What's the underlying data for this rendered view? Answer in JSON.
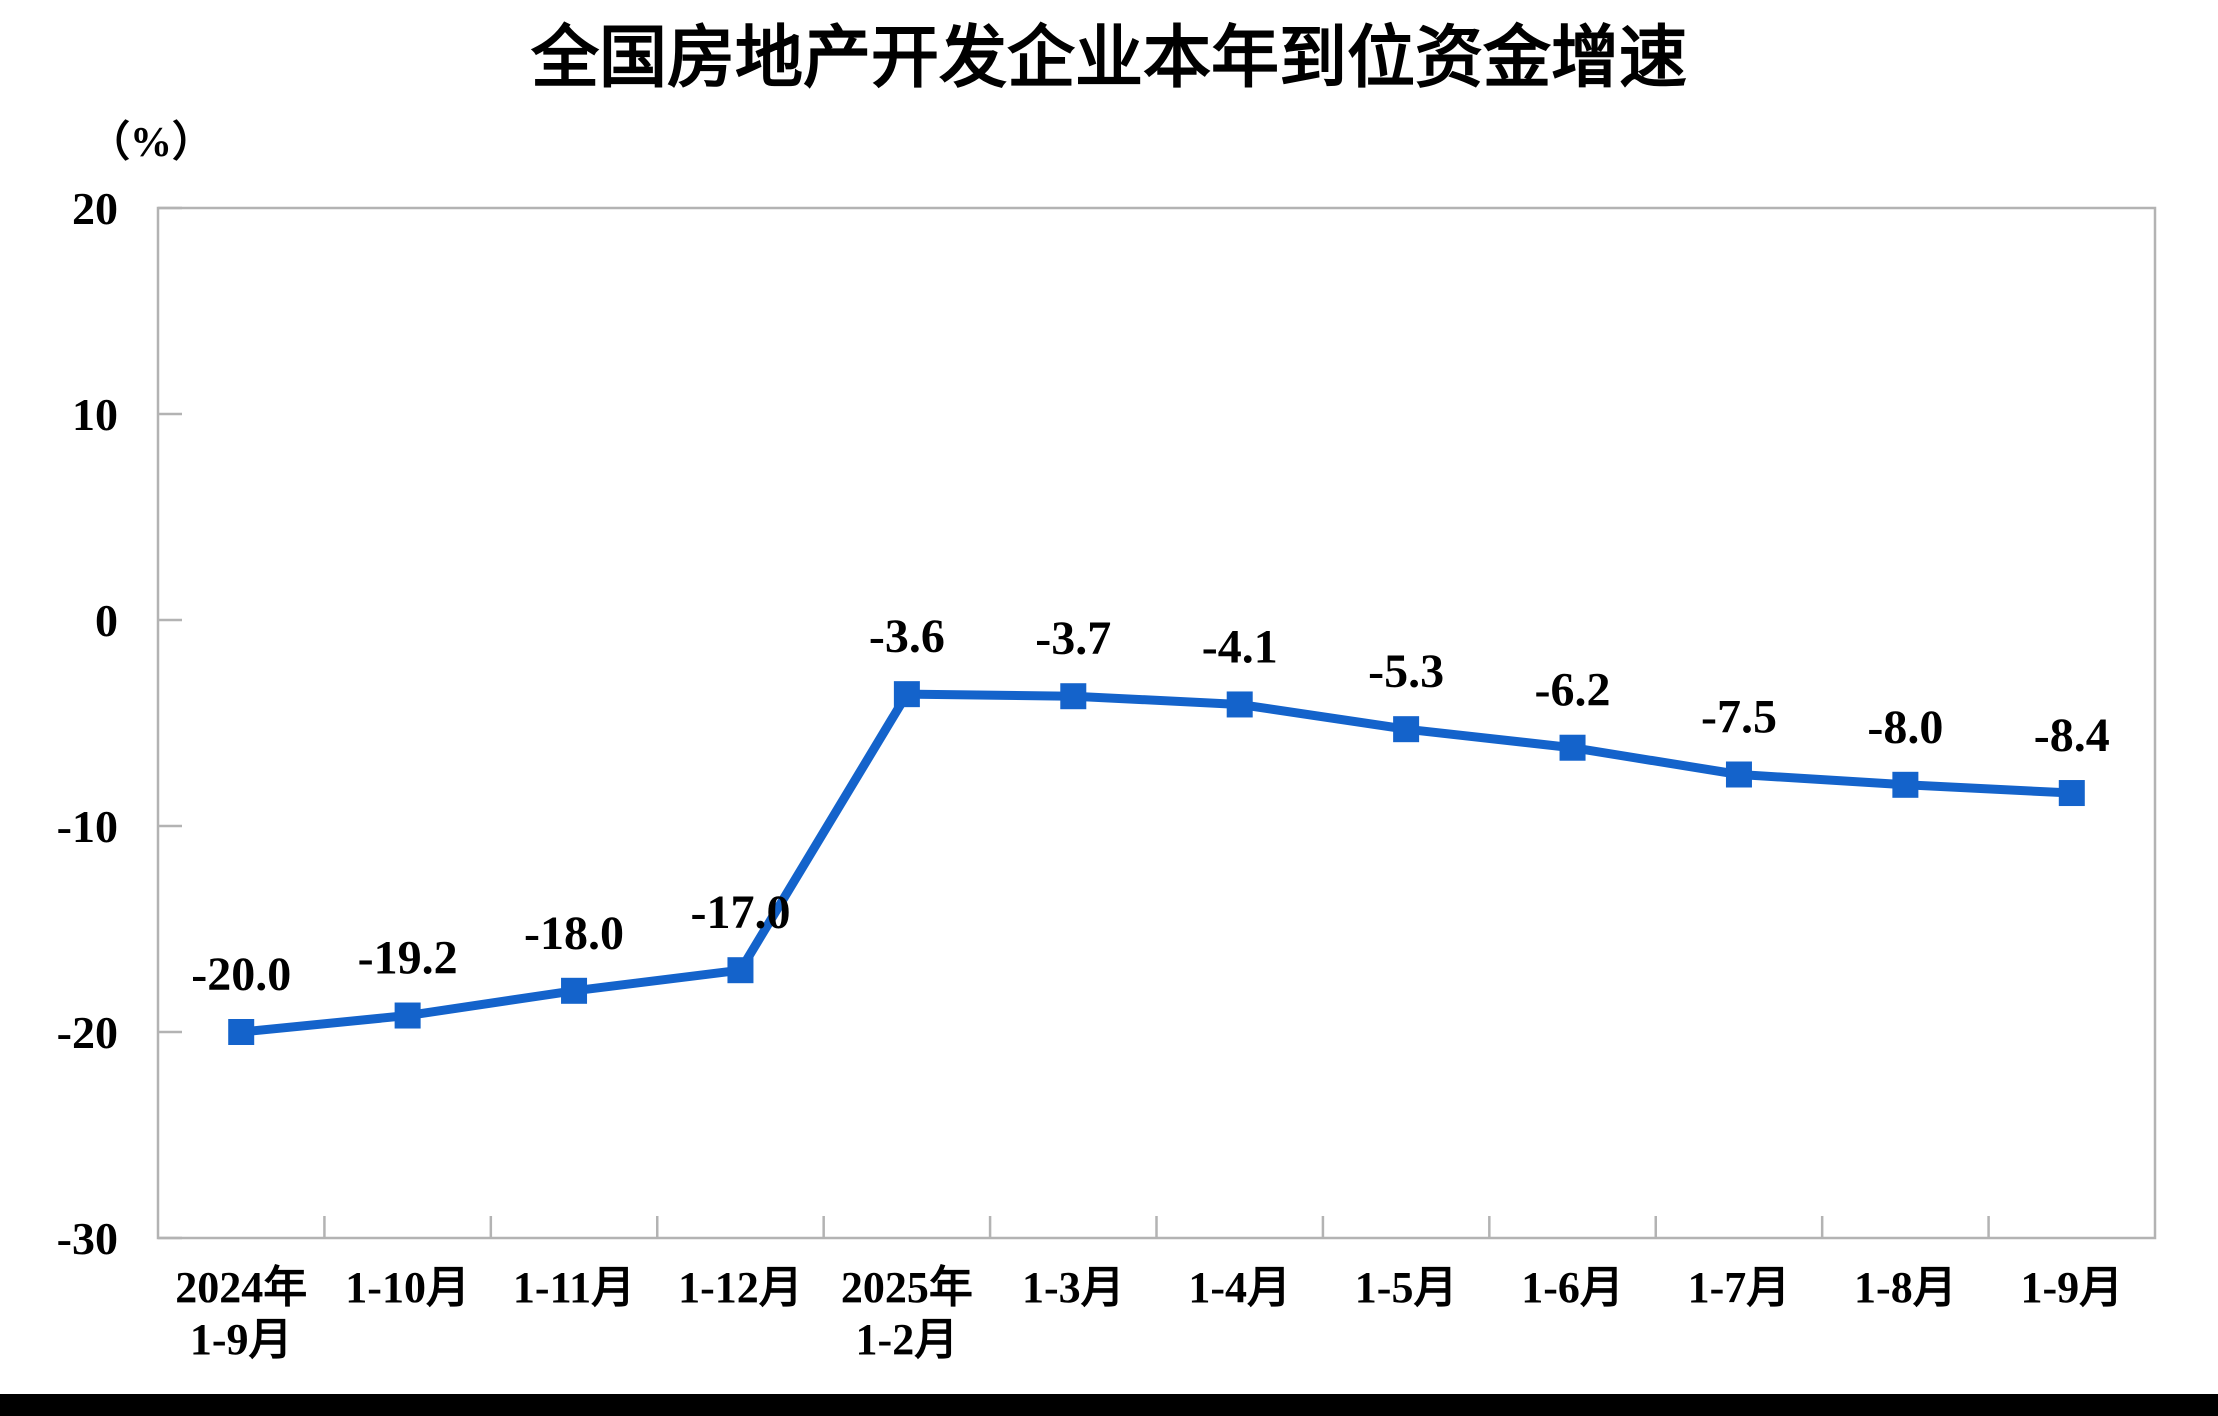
{
  "chart_data": {
    "type": "line",
    "title": "全国房地产开发企业本年到位资金增速",
    "unit_label": "（%）",
    "categories": [
      [
        "2024年",
        "1-9月"
      ],
      [
        "1-10月"
      ],
      [
        "1-11月"
      ],
      [
        "1-12月"
      ],
      [
        "2025年",
        "1-2月"
      ],
      [
        "1-3月"
      ],
      [
        "1-4月"
      ],
      [
        "1-5月"
      ],
      [
        "1-6月"
      ],
      [
        "1-7月"
      ],
      [
        "1-8月"
      ],
      [
        "1-9月"
      ]
    ],
    "values": [
      -20.0,
      -19.2,
      -18.0,
      -17.0,
      -3.6,
      -3.7,
      -4.1,
      -5.3,
      -6.2,
      -7.5,
      -8.0,
      -8.4
    ],
    "data_labels": [
      "-20.0",
      "-19.2",
      "-18.0",
      "-17.0",
      "-3.6",
      "-3.7",
      "-4.1",
      "-5.3",
      "-6.2",
      "-7.5",
      "-8.0",
      "-8.4"
    ],
    "xlabel": "",
    "ylabel": "（%）",
    "yticks": [
      20,
      10,
      0,
      -10,
      -20,
      -30
    ],
    "ylim": [
      -30,
      20
    ],
    "grid": false,
    "legend_position": "none",
    "line_color": "#1463CB",
    "marker": "square",
    "marker_color": "#1463CB",
    "axis_color": "#b3b3b3",
    "text_color": "#000000"
  }
}
